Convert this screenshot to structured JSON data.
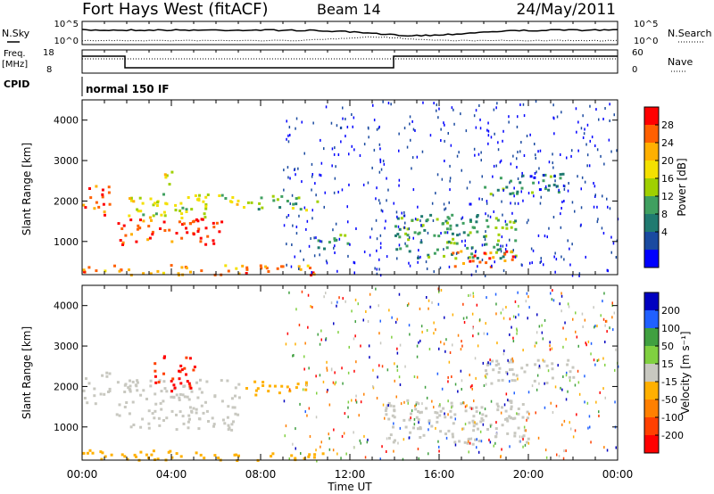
{
  "header": {
    "station": "Fort Hays West (fitACF)",
    "beam": "Beam 14",
    "date": "24/May/2011"
  },
  "top_panels": {
    "nsky_label": "N.Sky",
    "nsearch_label": "N.Search",
    "freq_label": "Freq.",
    "freq_unit": "[MHz]",
    "nave_label": "Nave",
    "cpid_label": "CPID",
    "cpid_value": "normal 150 IF",
    "noise_ticks": [
      "10^5",
      "10^0"
    ],
    "freq_ticks": [
      "18",
      "8"
    ],
    "nave_ticks": [
      "60",
      "0"
    ]
  },
  "chart_data": [
    {
      "type": "heatmap",
      "name": "power",
      "ylabel": "Slant Range [km]",
      "xlabel": "",
      "ylim": [
        180,
        4500
      ],
      "y_ticks": [
        "4000",
        "3000",
        "2000",
        "1000"
      ],
      "colorbar": {
        "label": "Power [dB]",
        "ticks": [
          "28",
          "24",
          "20",
          "16",
          "12",
          "8",
          "4"
        ],
        "colors": [
          "#ff0000",
          "#ff6000",
          "#ffb000",
          "#f4e000",
          "#a0d000",
          "#40a060",
          "#207a70",
          "#1a4aa0",
          "#0000ff"
        ]
      },
      "regions": [
        {
          "t": [
            0.0,
            1.2
          ],
          "r": [
            1600,
            2400
          ],
          "level": 26
        },
        {
          "t": [
            1.5,
            6.5
          ],
          "r": [
            950,
            1600
          ],
          "level": 28
        },
        {
          "t": [
            2.0,
            7.5
          ],
          "r": [
            1600,
            2200
          ],
          "level": 16
        },
        {
          "t": [
            7.5,
            10.5
          ],
          "r": [
            1800,
            2150
          ],
          "level": 12
        },
        {
          "t": [
            3.5,
            4.2
          ],
          "r": [
            2400,
            2800
          ],
          "level": 18
        },
        {
          "t": [
            0.0,
            11.0
          ],
          "r": [
            200,
            450
          ],
          "level": 24
        },
        {
          "t": [
            10.5,
            12.0
          ],
          "r": [
            850,
            1200
          ],
          "level": 10
        },
        {
          "t": [
            14.0,
            19.5
          ],
          "r": [
            600,
            1700
          ],
          "level": 10
        },
        {
          "t": [
            16.5,
            19.5
          ],
          "r": [
            400,
            800
          ],
          "level": 26
        },
        {
          "t": [
            18.0,
            21.5
          ],
          "r": [
            2200,
            2700
          ],
          "level": 8
        }
      ]
    },
    {
      "type": "heatmap",
      "name": "velocity",
      "ylabel": "Slant Range [km]",
      "xlabel": "Time UT",
      "ylim": [
        180,
        4500
      ],
      "y_ticks": [
        "4000",
        "3000",
        "2000",
        "1000"
      ],
      "x_ticks": [
        "00:00",
        "04:00",
        "08:00",
        "12:00",
        "16:00",
        "20:00",
        "00:00"
      ],
      "xlim_hours": [
        0,
        24
      ],
      "colorbar": {
        "label": "Velocity [m s⁻¹]",
        "ticks": [
          "200",
          "100",
          "50",
          "15",
          "-15",
          "-50",
          "-100",
          "-200"
        ],
        "colors": [
          "#0000c0",
          "#2060ff",
          "#40a040",
          "#80d040",
          "#c8c8c0",
          "#ffb000",
          "#ff8000",
          "#ff4000",
          "#ff0000"
        ]
      },
      "regions": [
        {
          "t": [
            0.0,
            1.2
          ],
          "r": [
            1600,
            2400
          ],
          "v": 0
        },
        {
          "t": [
            1.5,
            7.0
          ],
          "r": [
            950,
            2200
          ],
          "v": 0
        },
        {
          "t": [
            3.2,
            5.0
          ],
          "r": [
            1900,
            2800
          ],
          "v": -200
        },
        {
          "t": [
            7.0,
            10.0
          ],
          "r": [
            1800,
            2150
          ],
          "v": -30
        },
        {
          "t": [
            0.0,
            11.0
          ],
          "r": [
            200,
            450
          ],
          "v": -40
        },
        {
          "t": [
            13.5,
            20.0
          ],
          "r": [
            600,
            1700
          ],
          "v": 0
        },
        {
          "t": [
            18.0,
            22.0
          ],
          "r": [
            2100,
            2700
          ],
          "v": 0
        }
      ]
    }
  ]
}
